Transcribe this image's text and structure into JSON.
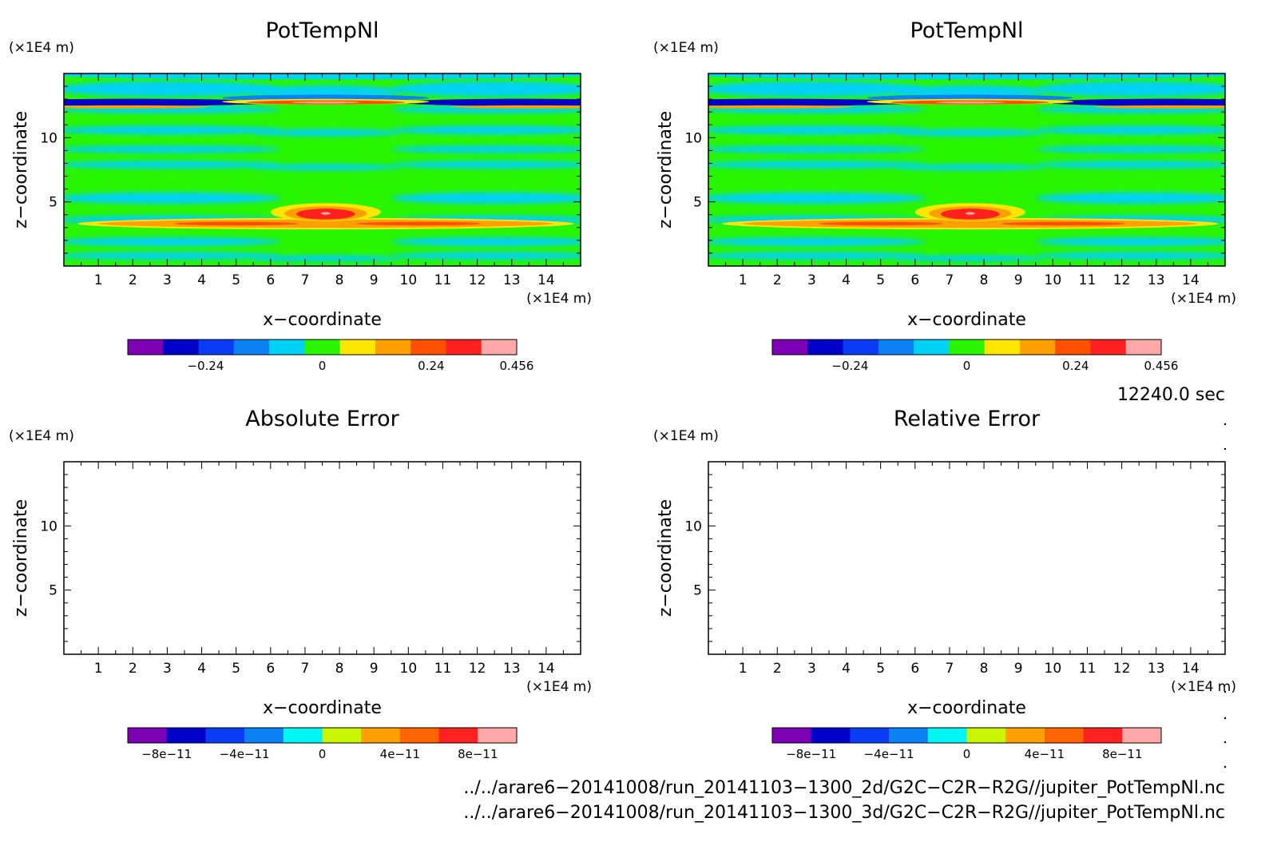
{
  "chart_data": [
    {
      "type": "heatmap",
      "title": "PotTempNl",
      "xlabel": "x−coordinate",
      "ylabel": "z−coordinate",
      "x_unit": "(×1E4 m)",
      "y_unit": "(×1E4 m)",
      "x_ticks": [
        "1",
        "2",
        "3",
        "4",
        "5",
        "6",
        "7",
        "8",
        "9",
        "10",
        "11",
        "12",
        "13",
        "14"
      ],
      "y_ticks": [
        "5",
        "10"
      ],
      "xlim": [
        0,
        15
      ],
      "ylim": [
        0,
        15
      ],
      "colorbar": {
        "colors": [
          "#7e00b4",
          "#0000c8",
          "#0a3cf5",
          "#0a82f5",
          "#00d2f5",
          "#28f500",
          "#ffe600",
          "#ffa000",
          "#ff5000",
          "#ff2020",
          "#ffa8a8"
        ],
        "ticks": [
          "−0.24",
          "0",
          "0.24",
          "0.456"
        ]
      }
    },
    {
      "type": "heatmap",
      "title": "PotTempNl",
      "xlabel": "x−coordinate",
      "ylabel": "z−coordinate",
      "x_unit": "(×1E4 m)",
      "y_unit": "(×1E4 m)",
      "x_ticks": [
        "1",
        "2",
        "3",
        "4",
        "5",
        "6",
        "7",
        "8",
        "9",
        "10",
        "11",
        "12",
        "13",
        "14"
      ],
      "y_ticks": [
        "5",
        "10"
      ],
      "xlim": [
        0,
        15
      ],
      "ylim": [
        0,
        15
      ],
      "colorbar": {
        "colors": [
          "#7e00b4",
          "#0000c8",
          "#0a3cf5",
          "#0a82f5",
          "#00d2f5",
          "#28f500",
          "#ffe600",
          "#ffa000",
          "#ff5000",
          "#ff2020",
          "#ffa8a8"
        ],
        "ticks": [
          "−0.24",
          "0",
          "0.24",
          "0.456"
        ]
      }
    },
    {
      "type": "heatmap",
      "title": "Absolute Error",
      "xlabel": "x−coordinate",
      "ylabel": "z−coordinate",
      "x_unit": "(×1E4 m)",
      "y_unit": "(×1E4 m)",
      "x_ticks": [
        "1",
        "2",
        "3",
        "4",
        "5",
        "6",
        "7",
        "8",
        "9",
        "10",
        "11",
        "12",
        "13",
        "14"
      ],
      "y_ticks": [
        "5",
        "10"
      ],
      "xlim": [
        0,
        15
      ],
      "ylim": [
        0,
        15
      ],
      "colorbar": {
        "colors": [
          "#7e00b4",
          "#0000c8",
          "#0a3cf5",
          "#0a82f5",
          "#00f5f5",
          "#c8f500",
          "#ffa000",
          "#ff6400",
          "#ff2020",
          "#ffa8a8"
        ],
        "ticks": [
          "−8e−11",
          "−4e−11",
          "0",
          "4e−11",
          "8e−11"
        ]
      }
    },
    {
      "type": "heatmap",
      "title": "Relative Error",
      "xlabel": "x−coordinate",
      "ylabel": "z−coordinate",
      "x_unit": "(×1E4 m)",
      "y_unit": "(×1E4 m)",
      "x_ticks": [
        "1",
        "2",
        "3",
        "4",
        "5",
        "6",
        "7",
        "8",
        "9",
        "10",
        "11",
        "12",
        "13",
        "14"
      ],
      "y_ticks": [
        "5",
        "10"
      ],
      "xlim": [
        0,
        15
      ],
      "ylim": [
        0,
        15
      ],
      "colorbar": {
        "colors": [
          "#7e00b4",
          "#0000c8",
          "#0a3cf5",
          "#0a82f5",
          "#00f5f5",
          "#c8f500",
          "#ffa000",
          "#ff6400",
          "#ff2020",
          "#ffa8a8"
        ],
        "ticks": [
          "−8e−11",
          "−4e−11",
          "0",
          "4e−11",
          "8e−11"
        ]
      }
    }
  ],
  "time_label": "12240.0 sec",
  "files": [
    "../../arare6−20141008/run_20141103−1300_2d/G2C−C2R−R2G//jupiter_PotTempNl.nc",
    "../../arare6−20141008/run_20141103−1300_3d/G2C−C2R−R2G//jupiter_PotTempNl.nc"
  ]
}
